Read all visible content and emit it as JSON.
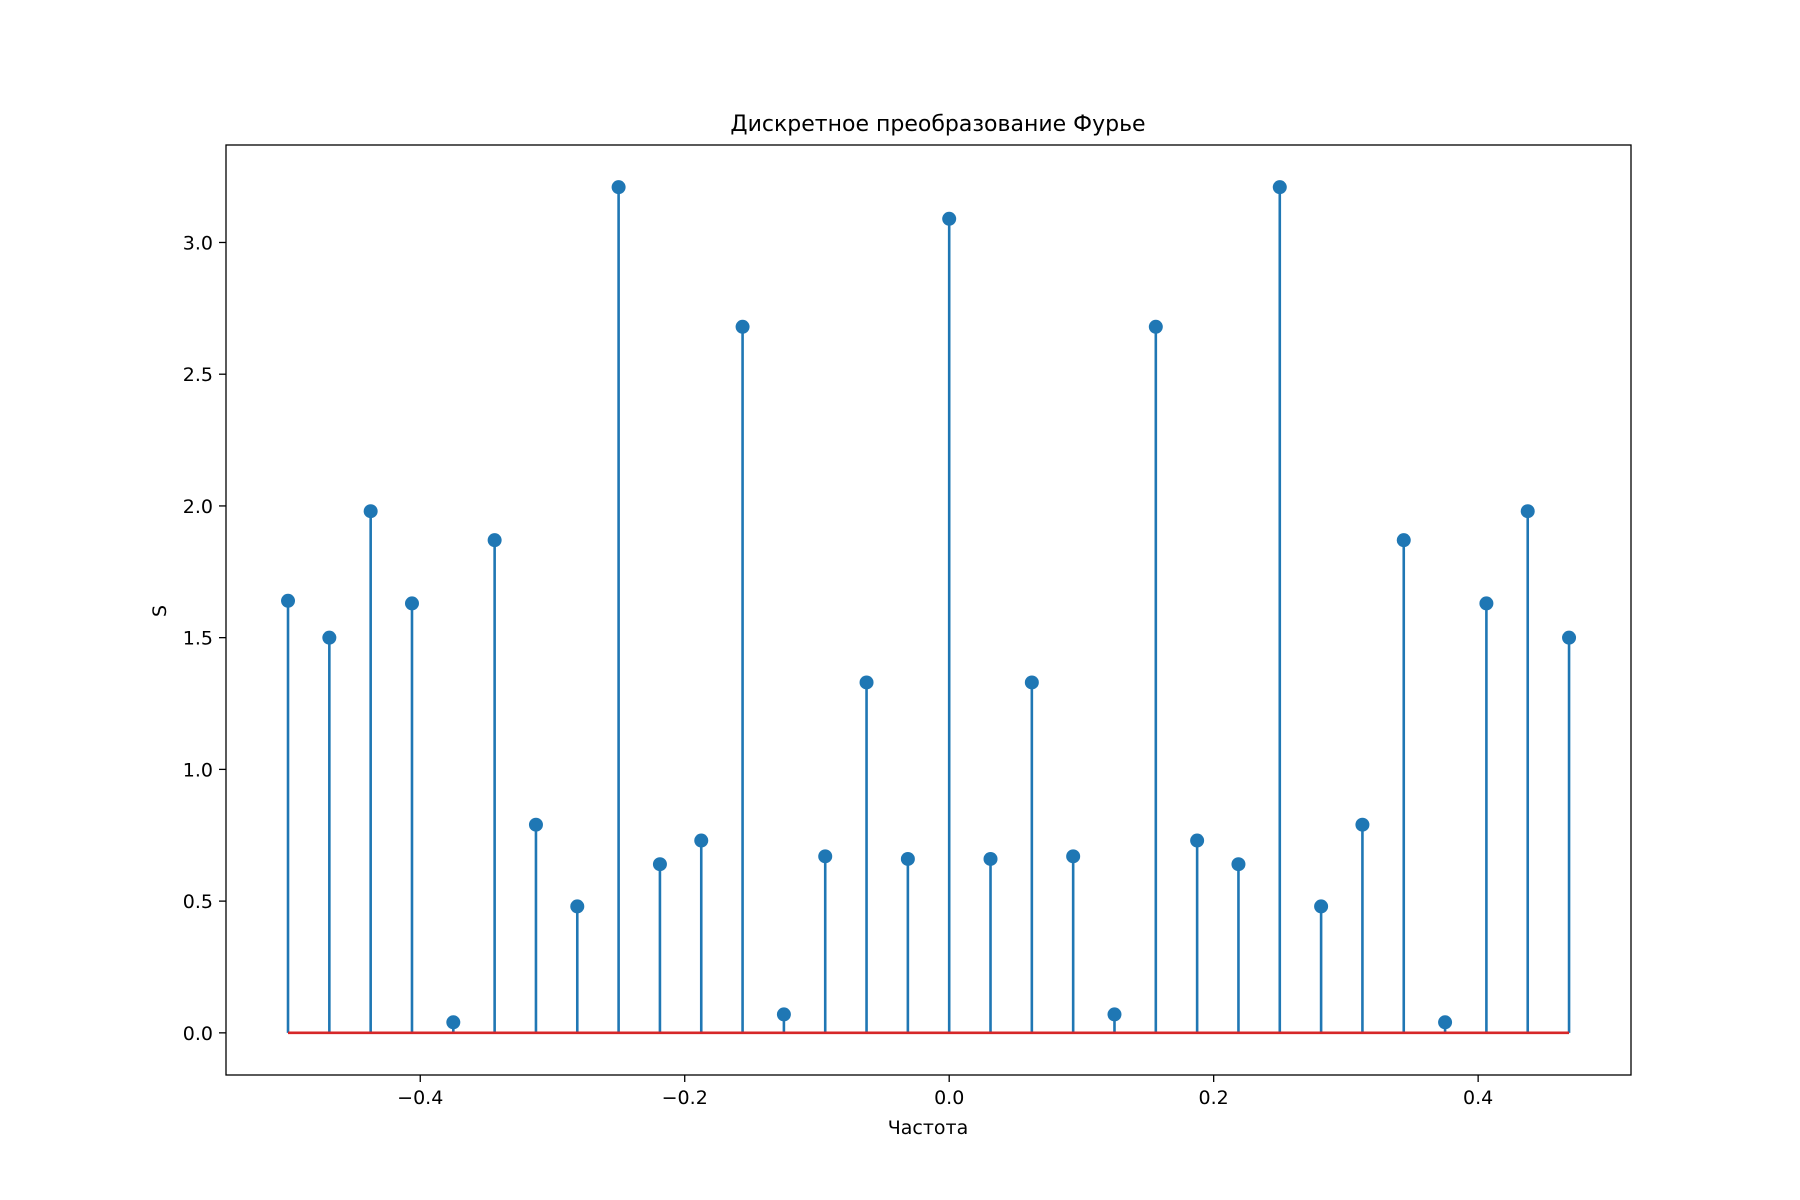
{
  "chart_data": {
    "type": "stem",
    "title": "Дискретное преобразование Фурье",
    "xlabel": "Частота",
    "ylabel": "S",
    "xlim": [
      -0.5469,
      0.5156
    ],
    "ylim": [
      -0.16,
      3.37
    ],
    "x_ticks": [
      -0.4,
      -0.2,
      0.0,
      0.2,
      0.4
    ],
    "x_tick_labels": [
      "−0.4",
      "−0.2",
      "0.0",
      "0.2",
      "0.4"
    ],
    "y_ticks": [
      0.0,
      0.5,
      1.0,
      1.5,
      2.0,
      2.5,
      3.0
    ],
    "y_tick_labels": [
      "0.0",
      "0.5",
      "1.0",
      "1.5",
      "2.0",
      "2.5",
      "3.0"
    ],
    "grid": false,
    "colors": {
      "stem": "#1f77b4",
      "marker": "#1f77b4",
      "baseline": "#d62728"
    },
    "series": [
      {
        "x": [
          -0.5,
          -0.46875,
          -0.4375,
          -0.40625,
          -0.375,
          -0.34375,
          -0.3125,
          -0.28125,
          -0.25,
          -0.21875,
          -0.1875,
          -0.15625,
          -0.125,
          -0.09375,
          -0.0625,
          -0.03125,
          0.0,
          0.03125,
          0.0625,
          0.09375,
          0.125,
          0.15625,
          0.1875,
          0.21875,
          0.25,
          0.28125,
          0.3125,
          0.34375,
          0.375,
          0.40625,
          0.4375,
          0.46875
        ],
        "values": [
          1.64,
          1.5,
          1.98,
          1.63,
          0.04,
          1.87,
          0.79,
          0.48,
          3.21,
          0.64,
          0.73,
          2.68,
          0.07,
          0.67,
          1.33,
          0.66,
          3.09,
          0.66,
          1.33,
          0.67,
          0.07,
          2.68,
          0.73,
          0.64,
          3.21,
          0.48,
          0.79,
          1.87,
          0.04,
          1.63,
          1.98,
          1.5
        ]
      }
    ]
  }
}
